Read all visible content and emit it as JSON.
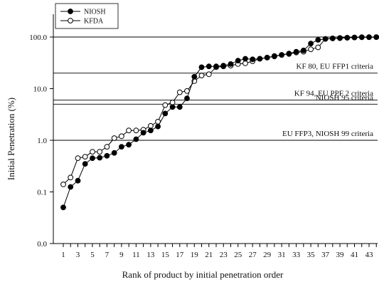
{
  "chart_data": {
    "type": "line",
    "xlabel": "Rank of product by initial penetration order",
    "ylabel": "Initial Penetration (%)",
    "xlim": [
      0.5,
      44
    ],
    "ylim": [
      0.01,
      100
    ],
    "y_scale": "log",
    "y_axis_floor_label": "0.0",
    "x_ticks": [
      1,
      3,
      5,
      7,
      9,
      11,
      13,
      15,
      17,
      19,
      21,
      23,
      25,
      27,
      29,
      31,
      33,
      35,
      37,
      39,
      41,
      43
    ],
    "x_tick_labels": [
      "1",
      "3",
      "5",
      "7",
      "9",
      "11",
      "13",
      "15",
      "17",
      "19",
      "21",
      "23",
      "25",
      "27",
      "29",
      "31",
      "33",
      "35",
      "37",
      "39",
      "41",
      "43"
    ],
    "y_ticks": [
      0.01,
      0.1,
      1,
      10,
      100
    ],
    "y_tick_labels": [
      "0.0",
      "0.1",
      "1.0",
      "10.0",
      "100.0"
    ],
    "grid": false,
    "legend": {
      "placement": "top-left"
    },
    "x": [
      1,
      2,
      3,
      4,
      5,
      6,
      7,
      8,
      9,
      10,
      11,
      12,
      13,
      14,
      15,
      16,
      17,
      18,
      19,
      20,
      21,
      22,
      23,
      24,
      25,
      26,
      27,
      28,
      29,
      30,
      31,
      32,
      33,
      34,
      35,
      36,
      37,
      38,
      39,
      40,
      41,
      42,
      43,
      44
    ],
    "series": [
      {
        "name": "NIOSH",
        "marker": "filled-circle",
        "color": "#000000",
        "values": [
          0.05,
          0.125,
          0.165,
          0.35,
          0.45,
          0.46,
          0.5,
          0.57,
          0.75,
          0.82,
          1.05,
          1.4,
          1.55,
          1.85,
          3.3,
          4.4,
          4.4,
          6.5,
          17,
          26,
          27,
          27,
          28,
          30,
          35,
          38,
          37,
          38,
          40,
          42,
          45,
          48,
          52,
          55,
          75,
          88,
          92,
          94,
          95,
          97,
          98,
          99,
          99.5,
          99.8
        ]
      },
      {
        "name": "KFDA",
        "marker": "open-circle",
        "color": "#000000",
        "values": [
          0.14,
          0.19,
          0.45,
          0.48,
          0.6,
          0.6,
          0.75,
          1.1,
          1.2,
          1.55,
          1.55,
          1.6,
          1.9,
          2.3,
          4.8,
          5.4,
          8.5,
          9,
          14,
          18,
          19,
          26,
          27,
          28,
          30,
          31,
          34,
          38,
          40,
          43,
          45,
          47,
          50,
          52,
          58,
          63,
          92,
          94,
          96,
          97,
          98,
          99,
          99.5,
          99.8
        ]
      }
    ],
    "reference_lines": [
      {
        "value": 100,
        "label": ""
      },
      {
        "value": 20,
        "label": "KF 80, EU FFP1 criteria"
      },
      {
        "value": 6,
        "label": "KF 94, EU PPF 2 criteria"
      },
      {
        "value": 5,
        "label": "NIOSH 95 criteria"
      },
      {
        "value": 1,
        "label": "EU FFP3, NIOSH 99 criteria"
      }
    ]
  }
}
